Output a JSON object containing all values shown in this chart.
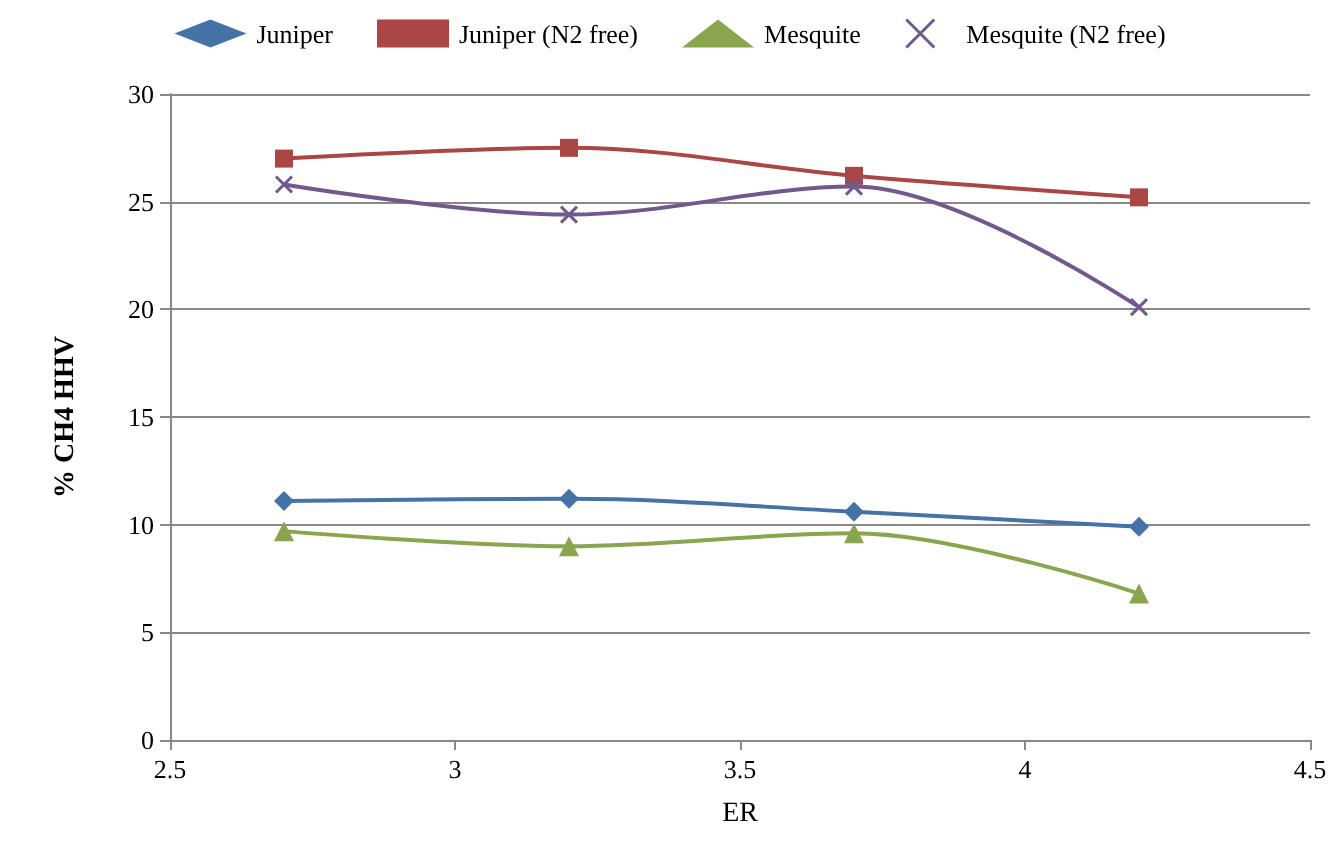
{
  "chart_data": {
    "type": "line",
    "xlabel": "ER",
    "ylabel": "% CH4 HHV",
    "x": [
      2.7,
      3.2,
      3.7,
      4.2
    ],
    "series": [
      {
        "name": "Juniper",
        "color": "#4572a7",
        "marker": "diamond",
        "values": [
          11.1,
          11.2,
          10.6,
          9.9
        ]
      },
      {
        "name": "Juniper (N2 free)",
        "color": "#aa4643",
        "marker": "square",
        "values": [
          27.0,
          27.5,
          26.2,
          25.2
        ]
      },
      {
        "name": "Mesquite",
        "color": "#89a54e",
        "marker": "triangle",
        "values": [
          9.7,
          9.0,
          9.6,
          6.8
        ]
      },
      {
        "name": "Mesquite (N2 free)",
        "color": "#71588f",
        "marker": "cross",
        "values": [
          25.8,
          24.4,
          25.7,
          20.1
        ]
      }
    ],
    "xlim": [
      2.5,
      4.5
    ],
    "xticks": [
      2.5,
      3,
      3.5,
      4,
      4.5
    ],
    "ylim": [
      0,
      30
    ],
    "yticks": [
      0,
      5,
      10,
      15,
      20,
      25,
      30
    ],
    "grid": "y",
    "legend": "top",
    "line_style": "solid"
  }
}
